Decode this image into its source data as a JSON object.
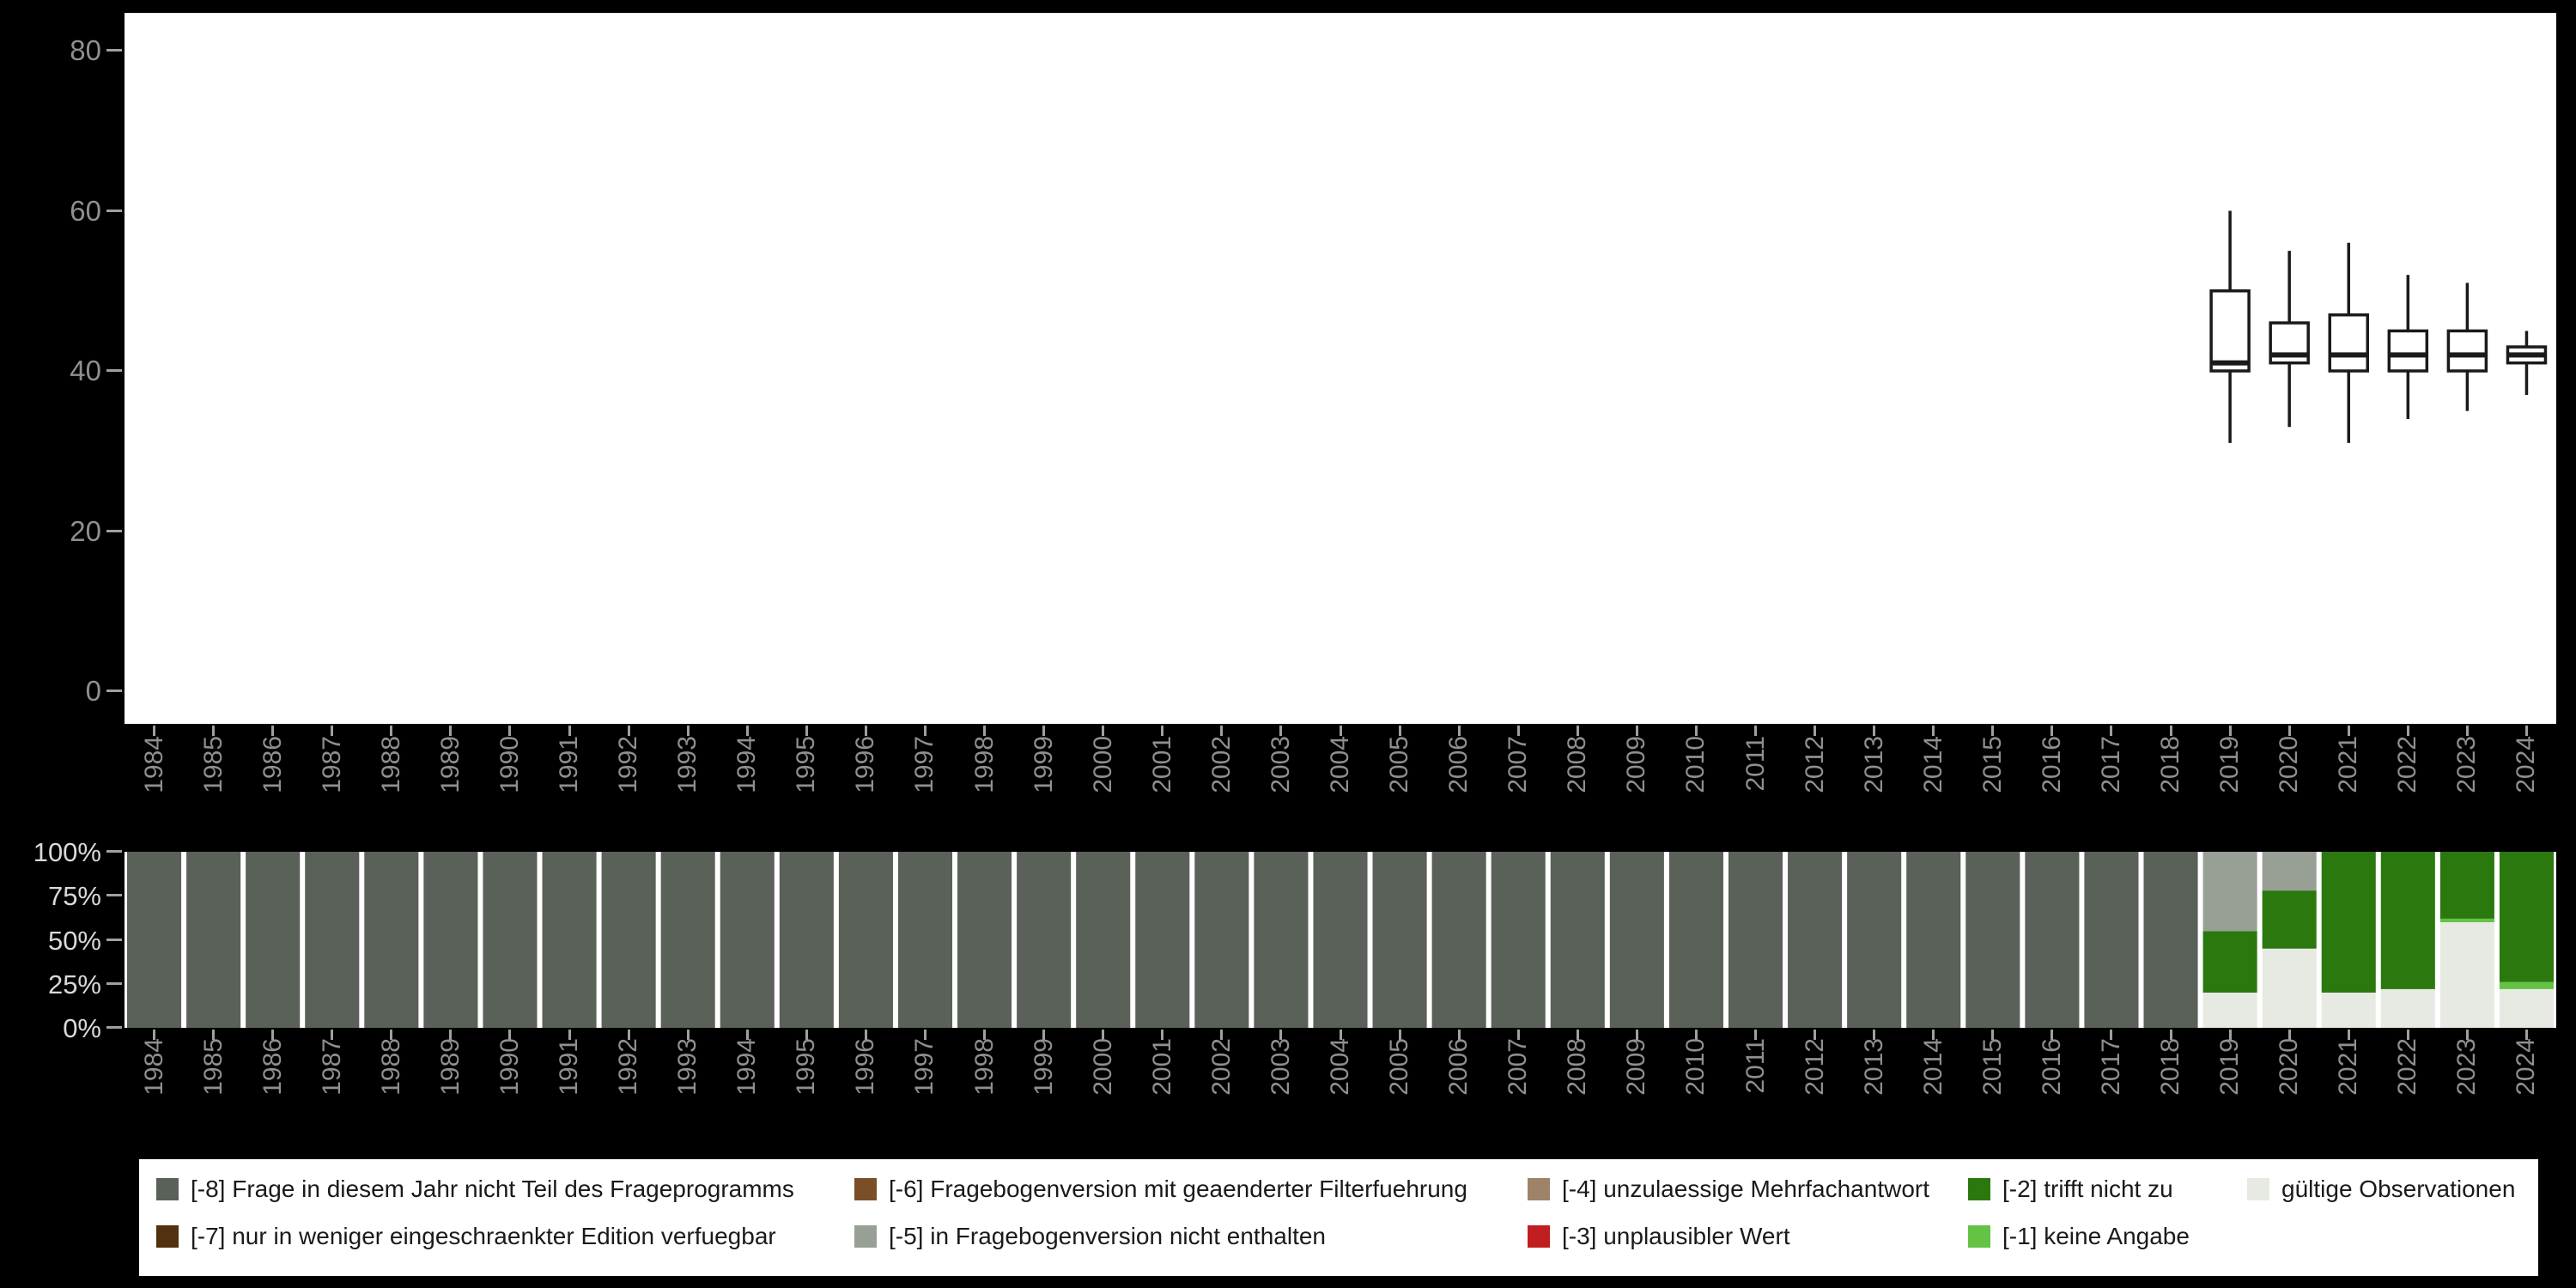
{
  "page": {
    "background": "#000000",
    "panel_background": "#ffffff"
  },
  "style": {
    "axis_label_color": "#8f8f8f",
    "axis_bright_label_color": "#d9d9d9",
    "tick_color": "#a0a0a0",
    "box_stroke": "#1a1a1a"
  },
  "chart_data": [
    {
      "id": "boxplot-by-year",
      "type": "boxplot",
      "ylim": [
        0,
        80
      ],
      "yticks": [
        80,
        60,
        40,
        20,
        0
      ],
      "grid": false,
      "x": [
        "1984",
        "1985",
        "1986",
        "1987",
        "1988",
        "1989",
        "1990",
        "1991",
        "1992",
        "1993",
        "1994",
        "1995",
        "1996",
        "1997",
        "1998",
        "1999",
        "2000",
        "2001",
        "2002",
        "2003",
        "2004",
        "2005",
        "2006",
        "2007",
        "2008",
        "2009",
        "2010",
        "2011",
        "2012",
        "2013",
        "2014",
        "2015",
        "2016",
        "2017",
        "2018",
        "2019",
        "2020",
        "2021",
        "2022",
        "2023",
        "2024"
      ],
      "boxes": [
        {
          "year": "2019",
          "min": 31,
          "q1": 40,
          "median": 41,
          "q3": 50,
          "max": 60
        },
        {
          "year": "2020",
          "min": 33,
          "q1": 41,
          "median": 42,
          "q3": 46,
          "max": 55
        },
        {
          "year": "2021",
          "min": 31,
          "q1": 40,
          "median": 42,
          "q3": 47,
          "max": 56
        },
        {
          "year": "2022",
          "min": 34,
          "q1": 40,
          "median": 42,
          "q3": 45,
          "max": 52
        },
        {
          "year": "2023",
          "min": 35,
          "q1": 40,
          "median": 42,
          "q3": 45,
          "max": 51
        },
        {
          "year": "2024",
          "min": 37,
          "q1": 41,
          "median": 42,
          "q3": 43,
          "max": 45
        }
      ]
    },
    {
      "id": "missing-codes-percent-by-year",
      "type": "bar",
      "stacked": true,
      "ylim": [
        0,
        100
      ],
      "ytick_values": [
        100,
        75,
        50,
        25,
        0
      ],
      "ytick_labels": [
        "100%",
        "75%",
        "50%",
        "25%",
        "0%"
      ],
      "categories": [
        "1984",
        "1985",
        "1986",
        "1987",
        "1988",
        "1989",
        "1990",
        "1991",
        "1992",
        "1993",
        "1994",
        "1995",
        "1996",
        "1997",
        "1998",
        "1999",
        "2000",
        "2001",
        "2002",
        "2003",
        "2004",
        "2005",
        "2006",
        "2007",
        "2008",
        "2009",
        "2010",
        "2011",
        "2012",
        "2013",
        "2014",
        "2015",
        "2016",
        "2017",
        "2018",
        "2019",
        "2020",
        "2021",
        "2022",
        "2023",
        "2024"
      ],
      "series": [
        {
          "key": "valid",
          "name": "gültige Observationen",
          "color": "#e7eae2",
          "values": [
            0,
            0,
            0,
            0,
            0,
            0,
            0,
            0,
            0,
            0,
            0,
            0,
            0,
            0,
            0,
            0,
            0,
            0,
            0,
            0,
            0,
            0,
            0,
            0,
            0,
            0,
            0,
            0,
            0,
            0,
            0,
            0,
            0,
            0,
            0,
            20,
            45,
            20,
            22,
            60,
            22
          ]
        },
        {
          "key": "-1",
          "name": "[-1] keine Angabe",
          "color": "#64c244",
          "values": [
            0,
            0,
            0,
            0,
            0,
            0,
            0,
            0,
            0,
            0,
            0,
            0,
            0,
            0,
            0,
            0,
            0,
            0,
            0,
            0,
            0,
            0,
            0,
            0,
            0,
            0,
            0,
            0,
            0,
            0,
            0,
            0,
            0,
            0,
            0,
            0,
            0,
            0,
            0,
            2,
            4
          ]
        },
        {
          "key": "-2",
          "name": "[-2] trifft nicht zu",
          "color": "#2b790e",
          "values": [
            0,
            0,
            0,
            0,
            0,
            0,
            0,
            0,
            0,
            0,
            0,
            0,
            0,
            0,
            0,
            0,
            0,
            0,
            0,
            0,
            0,
            0,
            0,
            0,
            0,
            0,
            0,
            0,
            0,
            0,
            0,
            0,
            0,
            0,
            0,
            35,
            33,
            80,
            78,
            38,
            74
          ]
        },
        {
          "key": "-3",
          "name": "[-3] unplausibler Wert",
          "color": "#c11f1f",
          "values": [
            0,
            0,
            0,
            0,
            0,
            0,
            0,
            0,
            0,
            0,
            0,
            0,
            0,
            0,
            0,
            0,
            0,
            0,
            0,
            0,
            0,
            0,
            0,
            0,
            0,
            0,
            0,
            0,
            0,
            0,
            0,
            0,
            0,
            0,
            0,
            0,
            0,
            0,
            0,
            0,
            0
          ]
        },
        {
          "key": "-4",
          "name": "[-4] unzulaessige Mehrfachantwort",
          "color": "#9d8468",
          "values": [
            0,
            0,
            0,
            0,
            0,
            0,
            0,
            0,
            0,
            0,
            0,
            0,
            0,
            0,
            0,
            0,
            0,
            0,
            0,
            0,
            0,
            0,
            0,
            0,
            0,
            0,
            0,
            0,
            0,
            0,
            0,
            0,
            0,
            0,
            0,
            0,
            0,
            0,
            0,
            0,
            0
          ]
        },
        {
          "key": "-5",
          "name": "[-5] in Fragebogenversion nicht enthalten",
          "color": "#98a096",
          "values": [
            0,
            0,
            0,
            0,
            0,
            0,
            0,
            0,
            0,
            0,
            0,
            0,
            0,
            0,
            0,
            0,
            0,
            0,
            0,
            0,
            0,
            0,
            0,
            0,
            0,
            0,
            0,
            0,
            0,
            0,
            0,
            0,
            0,
            0,
            0,
            45,
            22,
            0,
            0,
            0,
            0
          ]
        },
        {
          "key": "-6",
          "name": "[-6] Fragebogenversion mit geaenderter Filterfuehrung",
          "color": "#7a4f28",
          "values": [
            0,
            0,
            0,
            0,
            0,
            0,
            0,
            0,
            0,
            0,
            0,
            0,
            0,
            0,
            0,
            0,
            0,
            0,
            0,
            0,
            0,
            0,
            0,
            0,
            0,
            0,
            0,
            0,
            0,
            0,
            0,
            0,
            0,
            0,
            0,
            0,
            0,
            0,
            0,
            0,
            0
          ]
        },
        {
          "key": "-7",
          "name": "[-7] nur in weniger eingeschraenkter Edition verfuegbar",
          "color": "#53300f",
          "values": [
            0,
            0,
            0,
            0,
            0,
            0,
            0,
            0,
            0,
            0,
            0,
            0,
            0,
            0,
            0,
            0,
            0,
            0,
            0,
            0,
            0,
            0,
            0,
            0,
            0,
            0,
            0,
            0,
            0,
            0,
            0,
            0,
            0,
            0,
            0,
            0,
            0,
            0,
            0,
            0,
            0
          ]
        },
        {
          "key": "-8",
          "name": "[-8] Frage in diesem Jahr nicht Teil des Frageprogramms",
          "color": "#5a6158",
          "values": [
            100,
            100,
            100,
            100,
            100,
            100,
            100,
            100,
            100,
            100,
            100,
            100,
            100,
            100,
            100,
            100,
            100,
            100,
            100,
            100,
            100,
            100,
            100,
            100,
            100,
            100,
            100,
            100,
            100,
            100,
            100,
            100,
            100,
            100,
            100,
            0,
            0,
            0,
            0,
            0,
            0
          ]
        }
      ]
    }
  ],
  "legend": {
    "columns": [
      [
        {
          "key": "-8",
          "label": "[-8] Frage in diesem Jahr nicht Teil des Frageprogramms",
          "color": "#5a6158"
        },
        {
          "key": "-7",
          "label": "[-7] nur in weniger eingeschraenkter Edition verfuegbar",
          "color": "#53300f"
        }
      ],
      [
        {
          "key": "-6",
          "label": "[-6] Fragebogenversion mit geaenderter Filterfuehrung",
          "color": "#7a4f28"
        },
        {
          "key": "-5",
          "label": "[-5] in Fragebogenversion nicht enthalten",
          "color": "#98a096"
        }
      ],
      [
        {
          "key": "-4",
          "label": "[-4] unzulaessige Mehrfachantwort",
          "color": "#9d8468"
        },
        {
          "key": "-3",
          "label": "[-3] unplausibler Wert",
          "color": "#c11f1f"
        }
      ],
      [
        {
          "key": "-2",
          "label": "[-2] trifft nicht zu",
          "color": "#2b790e"
        },
        {
          "key": "-1",
          "label": "[-1] keine Angabe",
          "color": "#64c244"
        }
      ],
      [
        {
          "key": "valid",
          "label": "gültige Observationen",
          "color": "#e7eae2"
        }
      ]
    ]
  }
}
